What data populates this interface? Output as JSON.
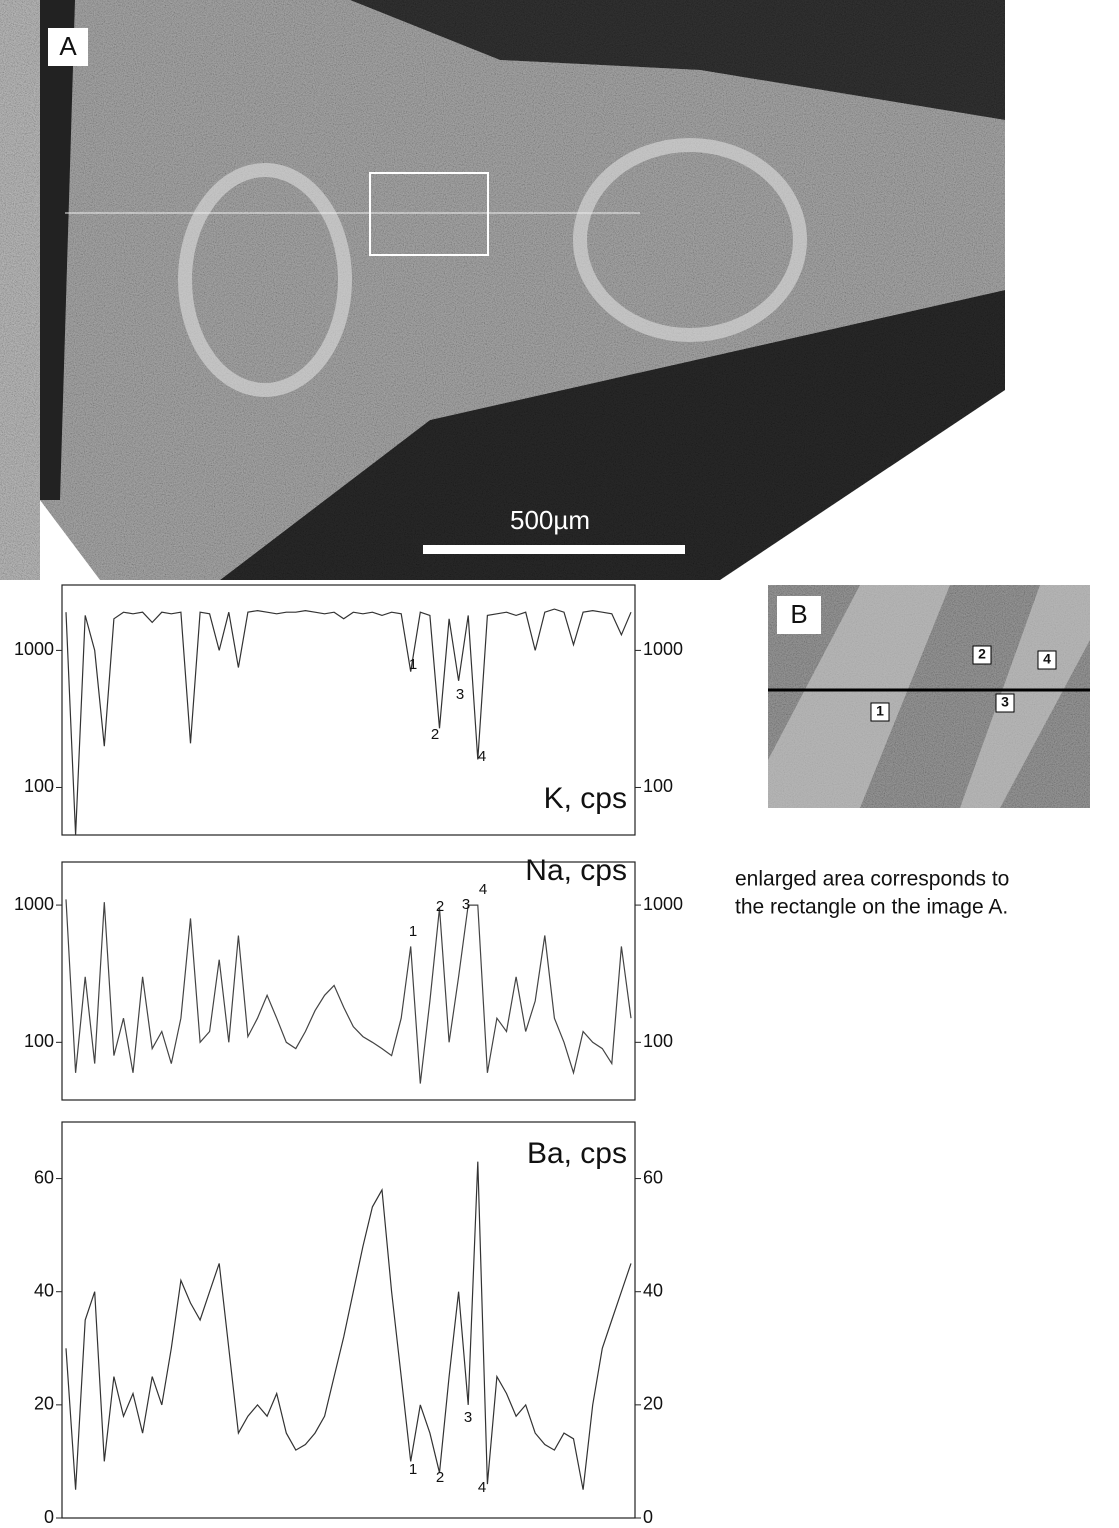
{
  "panel_a": {
    "label": "A",
    "scale_bar": "500µm"
  },
  "panel_b": {
    "label": "B",
    "markers": [
      "1",
      "2",
      "3",
      "4"
    ],
    "caption": [
      "enlarged area corresponds to",
      "the rectangle on the image A."
    ]
  },
  "chart_data": [
    {
      "type": "line",
      "title": "K, cps",
      "log_scale": true,
      "color": "#333",
      "ylim": [
        45,
        3000
      ],
      "yticks": [
        100,
        1000
      ],
      "y2lim": [
        45,
        3000
      ],
      "y2ticks": [
        100,
        1000
      ],
      "annotations": [
        "1",
        "2",
        "3",
        "4"
      ],
      "values": [
        1900,
        45,
        1800,
        1000,
        200,
        1700,
        1900,
        1850,
        1900,
        1600,
        1900,
        1850,
        1900,
        210,
        1900,
        1850,
        1000,
        1900,
        750,
        1900,
        1950,
        1900,
        1850,
        1900,
        1900,
        1950,
        1900,
        1850,
        1900,
        1700,
        1900,
        1850,
        1900,
        1800,
        1900,
        1850,
        700,
        1900,
        1800,
        270,
        1700,
        600,
        1800,
        160,
        1800,
        1850,
        1900,
        1800,
        1900,
        1000,
        1900,
        2000,
        1900,
        1100,
        1900,
        1950,
        1900,
        1850,
        1300,
        1900
      ]
    },
    {
      "type": "line",
      "title": "Na, cps",
      "log_scale": true,
      "color": "#444",
      "ylim": [
        38,
        2060
      ],
      "yticks": [
        100,
        1000
      ],
      "y2lim": [
        38,
        2060
      ],
      "y2ticks": [
        100,
        1000
      ],
      "annotations": [
        "1",
        "2",
        "3",
        "4"
      ],
      "values": [
        1100,
        60,
        300,
        70,
        1050,
        80,
        150,
        60,
        300,
        90,
        120,
        70,
        150,
        800,
        100,
        120,
        400,
        100,
        600,
        110,
        150,
        220,
        150,
        100,
        90,
        120,
        170,
        220,
        260,
        180,
        130,
        110,
        100,
        90,
        80,
        150,
        500,
        50,
        200,
        950,
        100,
        300,
        1000,
        1000,
        60,
        150,
        120,
        300,
        120,
        200,
        600,
        150,
        100,
        60,
        120,
        100,
        90,
        70,
        500,
        150
      ]
    },
    {
      "type": "line",
      "title": "Ba, cps",
      "log_scale": false,
      "color": "#333",
      "ylim": [
        0,
        70
      ],
      "yticks": [
        0,
        20,
        40,
        60
      ],
      "y2lim": [
        0,
        70
      ],
      "y2ticks": [
        0,
        20,
        40,
        60
      ],
      "annotations": [
        "1",
        "2",
        "3",
        "4"
      ],
      "values": [
        30,
        5,
        35,
        40,
        10,
        25,
        18,
        22,
        15,
        25,
        20,
        30,
        42,
        38,
        35,
        40,
        45,
        30,
        15,
        18,
        20,
        18,
        22,
        15,
        12,
        13,
        15,
        18,
        25,
        32,
        40,
        48,
        55,
        58,
        40,
        25,
        10,
        20,
        15,
        8,
        25,
        40,
        20,
        63,
        6,
        25,
        22,
        18,
        20,
        15,
        13,
        12,
        15,
        14,
        5,
        20,
        30,
        35,
        40,
        45
      ]
    }
  ]
}
